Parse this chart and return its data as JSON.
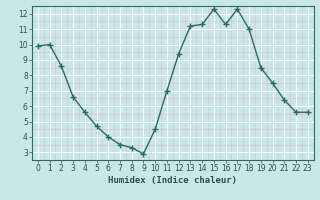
{
  "x": [
    0,
    1,
    2,
    3,
    4,
    5,
    6,
    7,
    8,
    9,
    10,
    11,
    12,
    13,
    14,
    15,
    16,
    17,
    18,
    19,
    20,
    21,
    22,
    23
  ],
  "y": [
    9.9,
    10.0,
    8.6,
    6.6,
    5.6,
    4.7,
    4.0,
    3.5,
    3.3,
    2.9,
    4.5,
    7.0,
    9.4,
    11.2,
    11.3,
    12.3,
    11.3,
    12.3,
    11.0,
    8.5,
    7.5,
    6.4,
    5.6,
    5.6
  ],
  "line_color": "#2e6b5e",
  "marker": "+",
  "marker_size": 4,
  "bg_color": "#c8e8e8",
  "grid_major_color": "#ffffff",
  "grid_minor_color": "#e8b8b8",
  "xlabel": "Humidex (Indice chaleur)",
  "xlim": [
    -0.5,
    23.5
  ],
  "ylim": [
    2.5,
    12.5
  ],
  "yticks": [
    3,
    4,
    5,
    6,
    7,
    8,
    9,
    10,
    11,
    12
  ],
  "xticks": [
    0,
    1,
    2,
    3,
    4,
    5,
    6,
    7,
    8,
    9,
    10,
    11,
    12,
    13,
    14,
    15,
    16,
    17,
    18,
    19,
    20,
    21,
    22,
    23
  ],
  "tick_fontsize": 5.5,
  "xlabel_fontsize": 6.5,
  "linewidth": 1.0
}
